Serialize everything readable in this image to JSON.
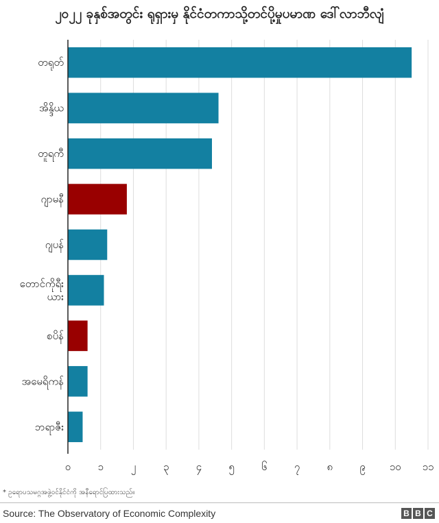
{
  "chart_data": {
    "type": "bar",
    "orientation": "horizontal",
    "title": "၂၀၂၂ ခုနှစ်အတွင်း ရုရှားမှ နိုင်ငံတကာသို့တင်ပို့မှုပမာဏ ဒေါ်လာဘီလျံ",
    "categories": [
      "တရုတ်",
      "အိန္ဒိယ",
      "တူရကီ",
      "ဂျာမနီ",
      "ဂျပန်",
      "တောင်ကိုရီး ယား",
      "စပိန်",
      "အမေရိကန်",
      "ဘရာဇီး"
    ],
    "values": [
      10.5,
      4.6,
      4.4,
      1.8,
      1.2,
      1.1,
      0.6,
      0.6,
      0.45
    ],
    "highlighted": [
      false,
      false,
      false,
      true,
      false,
      false,
      true,
      false,
      false
    ],
    "xlim": [
      0,
      11
    ],
    "xticks": [
      0,
      1,
      2,
      3,
      4,
      5,
      6,
      7,
      8,
      9,
      10,
      11
    ],
    "xtick_labels": [
      "၀",
      "၁",
      "၂",
      "၃",
      "၄",
      "၅",
      "၆",
      "၇",
      "၈",
      "၉",
      "၁၀",
      "၁၁"
    ],
    "grid": "vertical",
    "colors": {
      "default": "#1380a1",
      "highlight": "#990000",
      "grid": "#dddddd",
      "axis": "#222222"
    }
  },
  "footnote": "* ဥရောပသမဂ္ဂအဖွဲ့ဝင်နိုင်ငံကို အနီရောင်ပြထားသည်။",
  "source": "Source: The Observatory of Economic Complexity",
  "logo_letters": [
    "B",
    "B",
    "C"
  ]
}
